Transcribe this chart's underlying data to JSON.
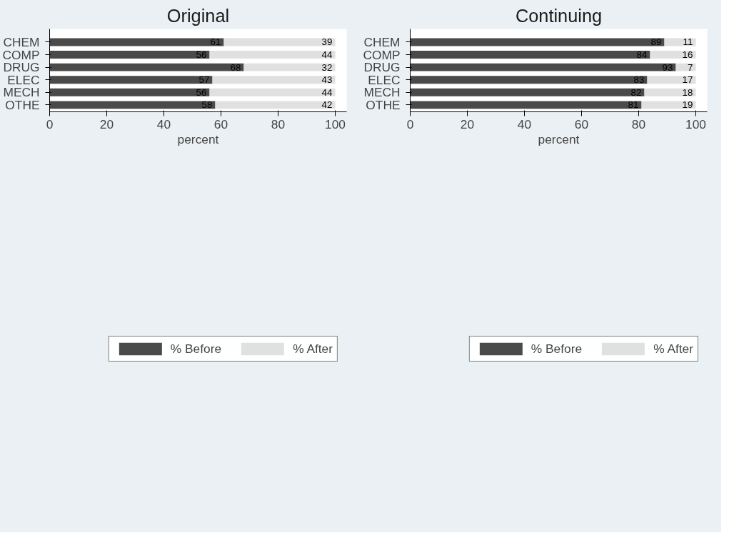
{
  "chart_data": [
    {
      "type": "bar",
      "orientation": "horizontal",
      "stacked": true,
      "title": "Original",
      "xlabel": "percent",
      "categories": [
        "CHEM",
        "COMP",
        "DRUG",
        "ELEC",
        "MECH",
        "OTHE"
      ],
      "series": [
        {
          "name": "% Before",
          "color": "#4a4a4a",
          "values": [
            61,
            56,
            68,
            57,
            56,
            58
          ]
        },
        {
          "name": "% After",
          "color": "#e0e0e0",
          "values": [
            39,
            44,
            32,
            43,
            44,
            42
          ]
        }
      ],
      "xlim": [
        0,
        104
      ],
      "xticks": [
        0,
        20,
        40,
        60,
        80,
        100
      ],
      "data_labels": true,
      "legend": "bottom",
      "grid": false
    },
    {
      "type": "bar",
      "orientation": "horizontal",
      "stacked": true,
      "title": "Continuing",
      "xlabel": "percent",
      "categories": [
        "CHEM",
        "COMP",
        "DRUG",
        "ELEC",
        "MECH",
        "OTHE"
      ],
      "series": [
        {
          "name": "% Before",
          "color": "#4a4a4a",
          "values": [
            89,
            84,
            93,
            83,
            82,
            81
          ]
        },
        {
          "name": "% After",
          "color": "#e0e0e0",
          "values": [
            11,
            16,
            7,
            17,
            18,
            19
          ]
        }
      ],
      "xlim": [
        0,
        104
      ],
      "xticks": [
        0,
        20,
        40,
        60,
        80,
        100
      ],
      "data_labels": true,
      "legend": "bottom",
      "grid": false
    }
  ]
}
